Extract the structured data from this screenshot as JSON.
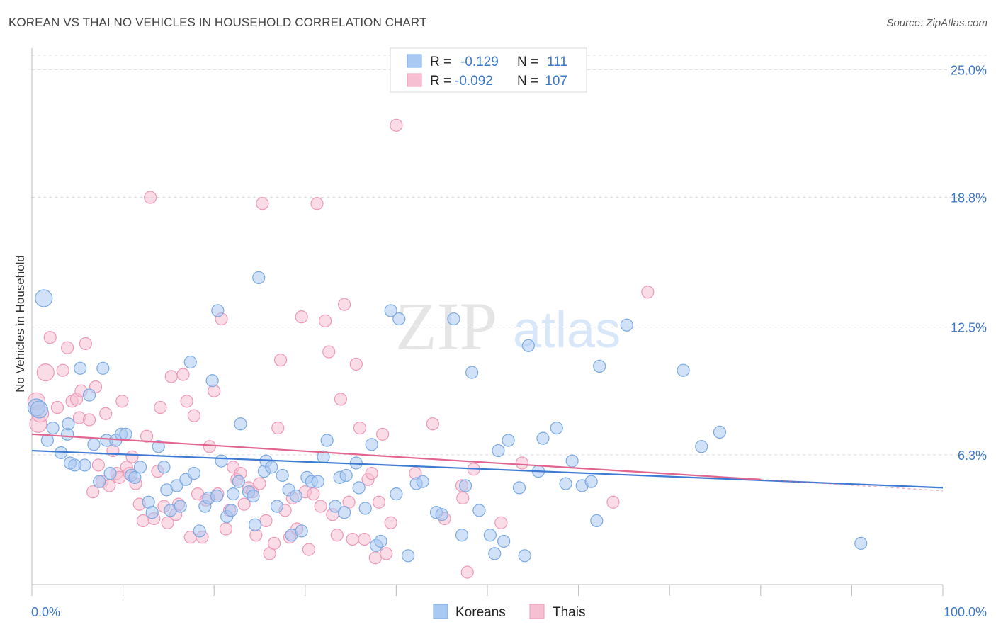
{
  "header": {
    "title": "KOREAN VS THAI NO VEHICLES IN HOUSEHOLD CORRELATION CHART",
    "source": "Source: ZipAtlas.com"
  },
  "watermark": {
    "zip": "ZIP",
    "atlas": "atlas"
  },
  "legend_stats": [
    {
      "r_label": "R =",
      "r": "-0.129",
      "n_label": "N =",
      "n": "111",
      "color": "#8fb8ec"
    },
    {
      "r_label": "R =",
      "r": "-0.092",
      "n_label": "N =",
      "n": "107",
      "color": "#f2a7c0"
    }
  ],
  "bottom_legend": [
    {
      "label": "Koreans",
      "color": "#8fb8ec"
    },
    {
      "label": "Thais",
      "color": "#f2a7c0"
    }
  ],
  "colors": {
    "korean_fill": "#a9c9f2",
    "korean_stroke": "#7aa9e3",
    "korean_line": "#3c7ad4",
    "thai_fill": "#f6bfd2",
    "thai_stroke": "#ee98b6",
    "thai_line": "#e2658f",
    "grid": "#dcdcdc",
    "tick_label": "#3c78c8",
    "stat_value": "#3c78c8"
  },
  "chart_data": {
    "type": "scatter",
    "ylabel": "No Vehicles in Household",
    "x_tick_labels": [
      "0.0%",
      "100.0%"
    ],
    "y_tick_labels": [
      "6.3%",
      "12.5%",
      "18.8%",
      "25.0%"
    ],
    "y_ticks": [
      6.3,
      12.5,
      18.8,
      25.0
    ],
    "xlim": [
      0,
      100
    ],
    "ylim": [
      0,
      25.7
    ],
    "grid": true,
    "legend_position": "top-center",
    "series": [
      {
        "name": "Koreans",
        "trend": {
          "x": [
            0,
            100
          ],
          "y": [
            6.5,
            4.7
          ]
        },
        "points": [
          [
            0.5,
            8.6
          ],
          [
            0.8,
            8.5
          ],
          [
            1.3,
            13.9
          ],
          [
            1.7,
            7.0
          ],
          [
            2.3,
            7.6
          ],
          [
            3.2,
            6.4
          ],
          [
            3.9,
            7.3
          ],
          [
            4.0,
            7.8
          ],
          [
            4.2,
            5.9
          ],
          [
            4.7,
            5.8
          ],
          [
            5.3,
            10.5
          ],
          [
            5.8,
            5.8
          ],
          [
            6.3,
            9.2
          ],
          [
            6.8,
            6.8
          ],
          [
            7.4,
            5.0
          ],
          [
            7.8,
            10.5
          ],
          [
            8.2,
            7.0
          ],
          [
            8.6,
            5.4
          ],
          [
            9.2,
            7.0
          ],
          [
            9.8,
            7.3
          ],
          [
            10.3,
            7.3
          ],
          [
            10.9,
            5.3
          ],
          [
            11.3,
            5.2
          ],
          [
            11.9,
            5.7
          ],
          [
            12.8,
            4.0
          ],
          [
            13.2,
            3.5
          ],
          [
            13.9,
            6.7
          ],
          [
            14.5,
            5.7
          ],
          [
            14.8,
            4.6
          ],
          [
            15.2,
            3.6
          ],
          [
            15.9,
            4.8
          ],
          [
            16.3,
            3.8
          ],
          [
            16.9,
            5.1
          ],
          [
            17.4,
            10.8
          ],
          [
            17.8,
            5.4
          ],
          [
            18.4,
            2.6
          ],
          [
            19.0,
            3.8
          ],
          [
            19.4,
            4.2
          ],
          [
            19.8,
            9.9
          ],
          [
            20.3,
            4.3
          ],
          [
            20.4,
            13.3
          ],
          [
            20.8,
            6.0
          ],
          [
            21.4,
            3.3
          ],
          [
            21.9,
            3.6
          ],
          [
            22.1,
            4.4
          ],
          [
            22.7,
            5.0
          ],
          [
            22.9,
            7.8
          ],
          [
            23.8,
            4.5
          ],
          [
            24.3,
            4.3
          ],
          [
            24.5,
            2.9
          ],
          [
            24.9,
            14.9
          ],
          [
            25.5,
            5.5
          ],
          [
            25.7,
            6.0
          ],
          [
            26.3,
            5.7
          ],
          [
            26.9,
            3.8
          ],
          [
            27.5,
            5.3
          ],
          [
            28.2,
            4.6
          ],
          [
            28.5,
            2.4
          ],
          [
            29.0,
            4.3
          ],
          [
            29.6,
            2.6
          ],
          [
            30.2,
            5.2
          ],
          [
            30.7,
            5.0
          ],
          [
            31.4,
            5.0
          ],
          [
            32.0,
            6.2
          ],
          [
            32.4,
            7.0
          ],
          [
            33.3,
            3.8
          ],
          [
            33.8,
            5.2
          ],
          [
            34.3,
            3.5
          ],
          [
            34.5,
            5.3
          ],
          [
            35.6,
            5.9
          ],
          [
            35.9,
            4.7
          ],
          [
            36.6,
            3.7
          ],
          [
            37.3,
            6.8
          ],
          [
            37.8,
            1.9
          ],
          [
            38.3,
            2.1
          ],
          [
            39.4,
            13.3
          ],
          [
            40.0,
            4.4
          ],
          [
            40.3,
            12.9
          ],
          [
            41.3,
            1.4
          ],
          [
            42.2,
            4.9
          ],
          [
            42.9,
            5.0
          ],
          [
            44.4,
            3.5
          ],
          [
            45.0,
            3.4
          ],
          [
            46.3,
            12.9
          ],
          [
            47.2,
            2.4
          ],
          [
            47.6,
            4.8
          ],
          [
            48.3,
            10.3
          ],
          [
            49.1,
            3.6
          ],
          [
            50.3,
            2.4
          ],
          [
            50.8,
            1.5
          ],
          [
            51.2,
            6.5
          ],
          [
            51.8,
            2.1
          ],
          [
            52.3,
            7.0
          ],
          [
            53.5,
            4.7
          ],
          [
            54.1,
            1.4
          ],
          [
            54.5,
            11.6
          ],
          [
            55.6,
            5.5
          ],
          [
            56.1,
            7.1
          ],
          [
            57.6,
            7.6
          ],
          [
            58.6,
            4.9
          ],
          [
            59.3,
            6.0
          ],
          [
            60.4,
            4.8
          ],
          [
            61.4,
            5.0
          ],
          [
            62.0,
            3.1
          ],
          [
            62.3,
            10.6
          ],
          [
            65.3,
            12.6
          ],
          [
            71.5,
            10.4
          ],
          [
            73.5,
            6.7
          ],
          [
            75.5,
            7.4
          ],
          [
            91.0,
            2.0
          ]
        ]
      },
      {
        "name": "Thais",
        "trend": {
          "x": [
            0,
            80
          ],
          "y": [
            7.3,
            5.1
          ]
        },
        "points": [
          [
            0.5,
            8.9
          ],
          [
            0.7,
            7.8
          ],
          [
            0.9,
            8.3
          ],
          [
            1.5,
            10.3
          ],
          [
            2.0,
            12.0
          ],
          [
            2.8,
            8.6
          ],
          [
            3.4,
            10.4
          ],
          [
            3.9,
            11.5
          ],
          [
            4.4,
            8.9
          ],
          [
            4.9,
            9.0
          ],
          [
            5.2,
            8.1
          ],
          [
            5.4,
            9.4
          ],
          [
            5.9,
            11.7
          ],
          [
            6.3,
            8.0
          ],
          [
            6.7,
            4.5
          ],
          [
            7.0,
            9.6
          ],
          [
            7.3,
            5.8
          ],
          [
            7.7,
            5.0
          ],
          [
            8.1,
            8.3
          ],
          [
            8.5,
            4.8
          ],
          [
            8.9,
            6.5
          ],
          [
            9.3,
            5.4
          ],
          [
            9.6,
            5.2
          ],
          [
            9.9,
            8.9
          ],
          [
            10.4,
            5.7
          ],
          [
            10.7,
            5.4
          ],
          [
            11.0,
            6.2
          ],
          [
            11.4,
            4.9
          ],
          [
            11.8,
            3.9
          ],
          [
            12.2,
            3.1
          ],
          [
            12.6,
            7.2
          ],
          [
            13.0,
            18.8
          ],
          [
            13.4,
            3.2
          ],
          [
            13.8,
            5.5
          ],
          [
            14.1,
            8.6
          ],
          [
            14.5,
            3.8
          ],
          [
            14.9,
            3.0
          ],
          [
            15.3,
            10.1
          ],
          [
            15.8,
            3.4
          ],
          [
            16.1,
            3.9
          ],
          [
            16.6,
            10.2
          ],
          [
            17.0,
            8.9
          ],
          [
            17.4,
            2.3
          ],
          [
            17.8,
            8.2
          ],
          [
            18.2,
            4.4
          ],
          [
            18.7,
            2.3
          ],
          [
            19.1,
            4.1
          ],
          [
            19.5,
            6.7
          ],
          [
            20.0,
            9.4
          ],
          [
            20.4,
            4.4
          ],
          [
            20.8,
            12.9
          ],
          [
            21.3,
            2.7
          ],
          [
            21.7,
            3.6
          ],
          [
            22.1,
            5.7
          ],
          [
            22.5,
            5.1
          ],
          [
            22.9,
            5.4
          ],
          [
            23.3,
            3.9
          ],
          [
            23.8,
            4.7
          ],
          [
            24.2,
            4.5
          ],
          [
            24.6,
            2.4
          ],
          [
            25.0,
            4.9
          ],
          [
            25.3,
            18.5
          ],
          [
            25.7,
            3.1
          ],
          [
            26.1,
            1.5
          ],
          [
            26.6,
            2.0
          ],
          [
            27.0,
            7.6
          ],
          [
            27.3,
            10.9
          ],
          [
            27.8,
            3.6
          ],
          [
            28.3,
            2.3
          ],
          [
            28.6,
            4.2
          ],
          [
            29.1,
            2.7
          ],
          [
            29.6,
            13.0
          ],
          [
            30.0,
            4.5
          ],
          [
            30.4,
            1.7
          ],
          [
            30.9,
            4.4
          ],
          [
            31.3,
            18.5
          ],
          [
            31.7,
            3.8
          ],
          [
            32.2,
            12.8
          ],
          [
            32.6,
            11.3
          ],
          [
            33.0,
            3.4
          ],
          [
            33.5,
            2.4
          ],
          [
            33.9,
            9.0
          ],
          [
            34.3,
            13.6
          ],
          [
            34.8,
            4.0
          ],
          [
            35.2,
            2.2
          ],
          [
            35.6,
            10.7
          ],
          [
            36.0,
            7.6
          ],
          [
            36.5,
            2.2
          ],
          [
            36.9,
            5.1
          ],
          [
            37.3,
            5.4
          ],
          [
            37.7,
            1.3
          ],
          [
            38.1,
            4.0
          ],
          [
            38.5,
            7.3
          ],
          [
            38.9,
            1.5
          ],
          [
            39.4,
            3.0
          ],
          [
            40.0,
            22.3
          ],
          [
            42.1,
            5.4
          ],
          [
            44.0,
            7.8
          ],
          [
            45.3,
            3.2
          ],
          [
            47.2,
            4.8
          ],
          [
            47.3,
            4.2
          ],
          [
            47.8,
            0.6
          ],
          [
            48.5,
            5.6
          ],
          [
            51.5,
            3.0
          ],
          [
            53.8,
            5.9
          ],
          [
            63.8,
            4.0
          ],
          [
            67.6,
            14.2
          ]
        ]
      }
    ]
  }
}
